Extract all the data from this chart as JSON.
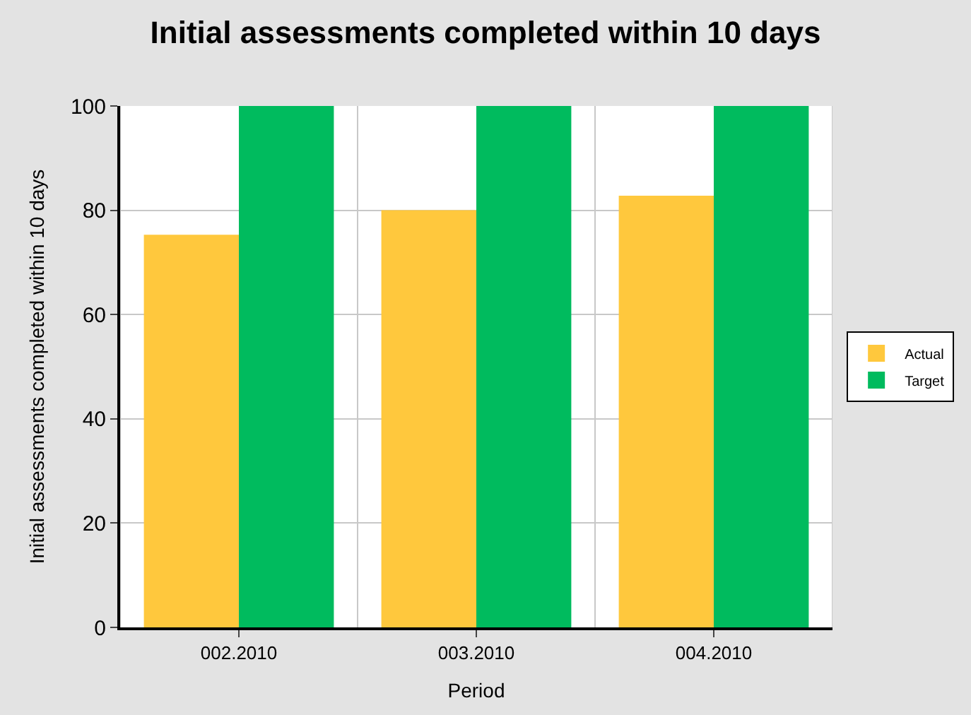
{
  "chart_data": {
    "type": "bar",
    "title": "Initial assessments completed within 10 days",
    "xlabel": "Period",
    "ylabel": "Initial assessments completed within 10 days",
    "categories": [
      "002.2010",
      "003.2010",
      "004.2010"
    ],
    "series": [
      {
        "name": "Actual",
        "color": "#ffc83d",
        "values": [
          75.3,
          80,
          82.8
        ]
      },
      {
        "name": "Target",
        "color": "#00bb5e",
        "values": [
          100,
          100,
          100
        ]
      }
    ],
    "ylim": [
      0,
      100
    ],
    "yticks": [
      0,
      20,
      40,
      60,
      80,
      100
    ],
    "grid": true,
    "legend": "right"
  }
}
